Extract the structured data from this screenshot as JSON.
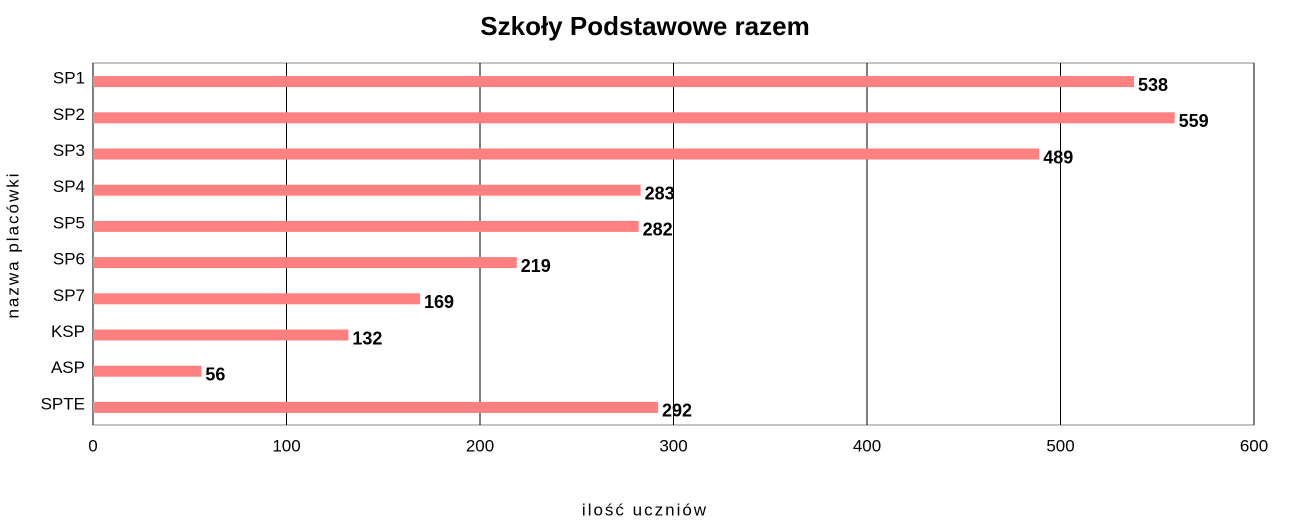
{
  "chart_data": {
    "type": "bar",
    "orientation": "horizontal",
    "title": "Szkoły Podstawowe razem",
    "x_label": "ilość uczniów",
    "y_label": "nazwa placówki",
    "categories": [
      "SP1",
      "SP2",
      "SP3",
      "SP4",
      "SP5",
      "SP6",
      "SP7",
      "KSP",
      "ASP",
      "SPTE"
    ],
    "values": [
      538,
      559,
      489,
      283,
      282,
      219,
      169,
      132,
      56,
      292
    ],
    "color": "#ff8080",
    "xlim": [
      0,
      600
    ],
    "xticks": [
      0,
      100,
      200,
      300,
      400,
      500,
      600
    ],
    "grid": true,
    "data_labels": true
  }
}
